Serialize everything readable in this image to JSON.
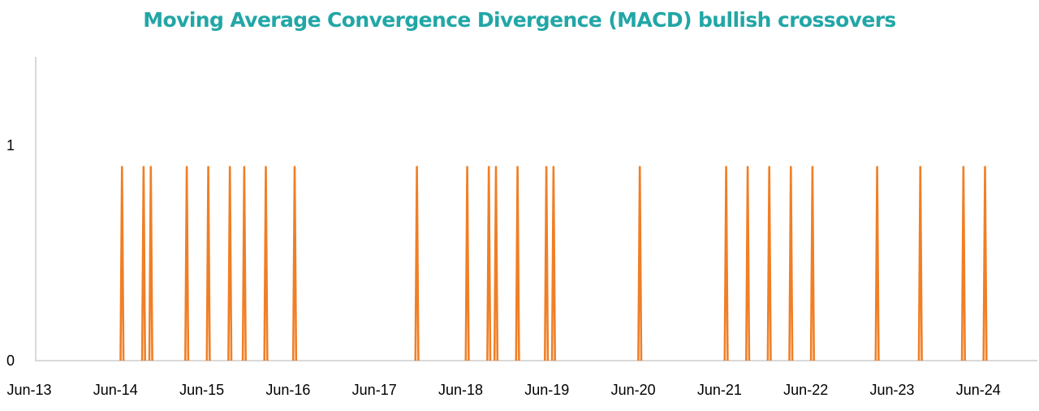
{
  "chart_data": {
    "type": "line",
    "title": "Moving Average Convergence Divergence (MACD) bullish crossovers",
    "xlabel": "",
    "ylabel": "",
    "y_ticks": [
      "0",
      "1"
    ],
    "ylim": [
      0,
      1.4
    ],
    "xlim": [
      "2013-06",
      "2025-06"
    ],
    "x_tick_labels": [
      "Jun-13",
      "Jun-14",
      "Jun-15",
      "Jun-16",
      "Jun-17",
      "Jun-18",
      "Jun-19",
      "Jun-20",
      "Jun-21",
      "Jun-22",
      "Jun-23",
      "Jun-24"
    ],
    "grid": false,
    "series": [
      {
        "color": "#f07f26",
        "peak_value": 0.9,
        "baseline_value": 0,
        "crossover_dates": [
          "2014-06",
          "2014-09",
          "2014-10",
          "2015-03",
          "2015-06",
          "2015-09",
          "2015-11",
          "2016-02",
          "2016-06",
          "2017-11",
          "2018-06",
          "2018-09",
          "2018-10",
          "2019-01",
          "2019-05",
          "2019-06",
          "2020-06",
          "2021-06",
          "2021-09",
          "2021-12",
          "2022-03",
          "2022-06",
          "2023-03",
          "2023-09",
          "2024-03",
          "2024-06"
        ]
      }
    ]
  }
}
